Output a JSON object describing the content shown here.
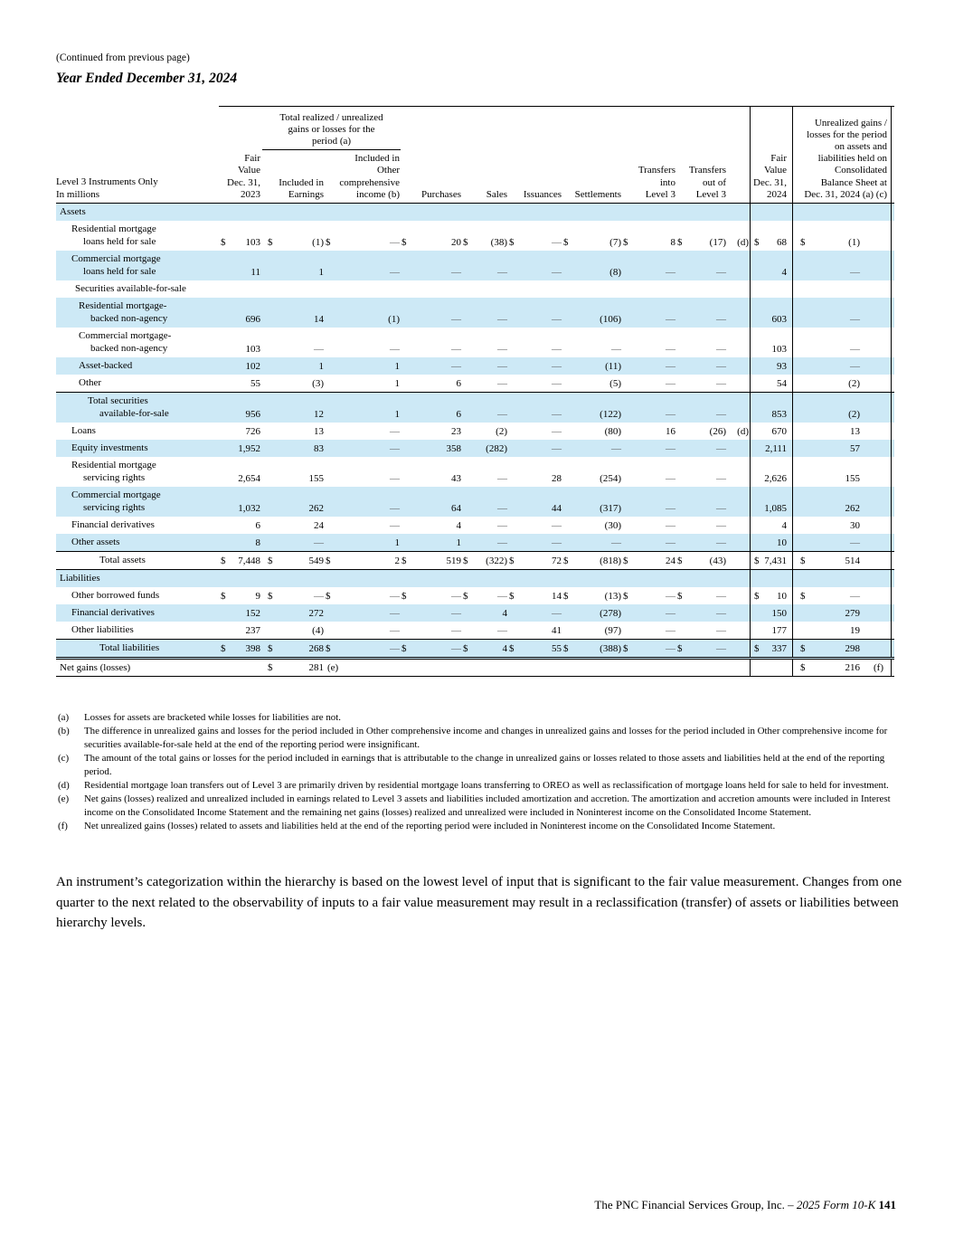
{
  "page": {
    "continued_note": "(Continued from previous page)",
    "title": "Year Ended December 31, 2024",
    "paragraph": "An instrument’s categorization within the hierarchy is based on the lowest level of input that is significant to the fair value measurement. Changes from one quarter to the next related to the observability of inputs to a fair value measurement may result in a reclassification (transfer) of assets or liabilities between hierarchy levels.",
    "footer": {
      "company": "The PNC Financial Services Group, Inc. – ",
      "form": "2025 Form 10-K",
      "page_number": "141"
    }
  },
  "table": {
    "row_header": "Level 3 Instruments Only\nIn millions",
    "group_header": "Total realized / unrealized\ngains or losses for the\nperiod (a)",
    "columns": [
      "Fair\nValue\nDec. 31,\n2023",
      "Included in\nEarnings",
      "Included in\nOther\ncomprehensive\nincome (b)",
      "Purchases",
      "Sales",
      "Issuances",
      "Settlements",
      "Transfers\ninto\nLevel 3",
      "Transfers\nout of\nLevel 3",
      "Fair\nValue\nDec. 31,\n2024",
      "Unrealized gains /\nlosses for the period\non assets and\nliabilities held on\nConsolidated\nBalance Sheet at\nDec. 31, 2024 (a) (c)"
    ],
    "rows": [
      {
        "label": "Assets",
        "ind": "sec",
        "shade": true,
        "cells": []
      },
      {
        "label": "Residential mortgage\nloans held for sale",
        "ind": "l1",
        "cells": [
          {
            "c": true,
            "v": "103"
          },
          {
            "c": true,
            "v": "(1)"
          },
          {
            "c": true,
            "v": "—"
          },
          {
            "c": true,
            "v": "20"
          },
          {
            "c": true,
            "v": "(38)"
          },
          {
            "c": true,
            "v": "—"
          },
          {
            "c": true,
            "v": "(7)"
          },
          {
            "c": true,
            "v": "8"
          },
          {
            "c": true,
            "v": "(17)",
            "n": "(d)"
          },
          {
            "c": true,
            "v": "68"
          },
          {
            "c": true,
            "v": "(1)"
          }
        ]
      },
      {
        "label": "Commercial mortgage\nloans held for sale",
        "ind": "l1",
        "shade": true,
        "cells": [
          {
            "v": "11"
          },
          {
            "v": "1"
          },
          {
            "v": "—"
          },
          {
            "v": "—"
          },
          {
            "v": "—"
          },
          {
            "v": "—"
          },
          {
            "v": "(8)"
          },
          {
            "v": "—"
          },
          {
            "v": "—"
          },
          {
            "v": "4"
          },
          {
            "v": "—"
          }
        ]
      },
      {
        "label": "Securities available-for-sale",
        "ind": "l1b",
        "cells": []
      },
      {
        "label": "Residential mortgage-\nbacked non-agency",
        "ind": "l2",
        "shade": true,
        "cells": [
          {
            "v": "696"
          },
          {
            "v": "14"
          },
          {
            "v": "(1)"
          },
          {
            "v": "—"
          },
          {
            "v": "—"
          },
          {
            "v": "—"
          },
          {
            "v": "(106)"
          },
          {
            "v": "—"
          },
          {
            "v": "—"
          },
          {
            "v": "603"
          },
          {
            "v": "—"
          }
        ]
      },
      {
        "label": "Commercial mortgage-\nbacked non-agency",
        "ind": "l2",
        "cells": [
          {
            "v": "103"
          },
          {
            "v": "—"
          },
          {
            "v": "—"
          },
          {
            "v": "—"
          },
          {
            "v": "—"
          },
          {
            "v": "—"
          },
          {
            "v": "—"
          },
          {
            "v": "—"
          },
          {
            "v": "—"
          },
          {
            "v": "103"
          },
          {
            "v": "—"
          }
        ]
      },
      {
        "label": "Asset-backed",
        "ind": "l2",
        "shade": true,
        "cells": [
          {
            "v": "102"
          },
          {
            "v": "1"
          },
          {
            "v": "1"
          },
          {
            "v": "—"
          },
          {
            "v": "—"
          },
          {
            "v": "—"
          },
          {
            "v": "(11)"
          },
          {
            "v": "—"
          },
          {
            "v": "—"
          },
          {
            "v": "93"
          },
          {
            "v": "—"
          }
        ]
      },
      {
        "label": "Other",
        "ind": "l2",
        "cells": [
          {
            "v": "55"
          },
          {
            "v": "(3)"
          },
          {
            "v": "1"
          },
          {
            "v": "6"
          },
          {
            "v": "—"
          },
          {
            "v": "—"
          },
          {
            "v": "(5)"
          },
          {
            "v": "—"
          },
          {
            "v": "—"
          },
          {
            "v": "54"
          },
          {
            "v": "(2)"
          }
        ]
      },
      {
        "label": "Total securities\navailable-for-sale",
        "ind": "totalw",
        "shade": true,
        "cls": "bt",
        "cells": [
          {
            "v": "956"
          },
          {
            "v": "12"
          },
          {
            "v": "1"
          },
          {
            "v": "6"
          },
          {
            "v": "—"
          },
          {
            "v": "—"
          },
          {
            "v": "(122)"
          },
          {
            "v": "—"
          },
          {
            "v": "—"
          },
          {
            "v": "853"
          },
          {
            "v": "(2)"
          }
        ]
      },
      {
        "label": "Loans",
        "ind": "l1",
        "cells": [
          {
            "v": "726"
          },
          {
            "v": "13"
          },
          {
            "v": "—"
          },
          {
            "v": "23"
          },
          {
            "v": "(2)"
          },
          {
            "v": "—"
          },
          {
            "v": "(80)"
          },
          {
            "v": "16"
          },
          {
            "v": "(26)",
            "n": "(d)"
          },
          {
            "v": "670"
          },
          {
            "v": "13"
          }
        ]
      },
      {
        "label": "Equity investments",
        "ind": "l1",
        "shade": true,
        "cells": [
          {
            "v": "1,952"
          },
          {
            "v": "83"
          },
          {
            "v": "—"
          },
          {
            "v": "358"
          },
          {
            "v": "(282)"
          },
          {
            "v": "—"
          },
          {
            "v": "—"
          },
          {
            "v": "—"
          },
          {
            "v": "—"
          },
          {
            "v": "2,111"
          },
          {
            "v": "57"
          }
        ]
      },
      {
        "label": "Residential mortgage\nservicing rights",
        "ind": "l1",
        "cells": [
          {
            "v": "2,654"
          },
          {
            "v": "155"
          },
          {
            "v": "—"
          },
          {
            "v": "43"
          },
          {
            "v": "—"
          },
          {
            "v": "28"
          },
          {
            "v": "(254)"
          },
          {
            "v": "—"
          },
          {
            "v": "—"
          },
          {
            "v": "2,626"
          },
          {
            "v": "155"
          }
        ]
      },
      {
        "label": "Commercial mortgage\nservicing rights",
        "ind": "l1",
        "shade": true,
        "cells": [
          {
            "v": "1,032"
          },
          {
            "v": "262"
          },
          {
            "v": "—"
          },
          {
            "v": "64"
          },
          {
            "v": "—"
          },
          {
            "v": "44"
          },
          {
            "v": "(317)"
          },
          {
            "v": "—"
          },
          {
            "v": "—"
          },
          {
            "v": "1,085"
          },
          {
            "v": "262"
          }
        ]
      },
      {
        "label": "Financial derivatives",
        "ind": "l1",
        "cells": [
          {
            "v": "6"
          },
          {
            "v": "24"
          },
          {
            "v": "—"
          },
          {
            "v": "4"
          },
          {
            "v": "—"
          },
          {
            "v": "—"
          },
          {
            "v": "(30)"
          },
          {
            "v": "—"
          },
          {
            "v": "—"
          },
          {
            "v": "4"
          },
          {
            "v": "30"
          }
        ]
      },
      {
        "label": "Other assets",
        "ind": "l1",
        "shade": true,
        "cells": [
          {
            "v": "8"
          },
          {
            "v": "—"
          },
          {
            "v": "1"
          },
          {
            "v": "1"
          },
          {
            "v": "—"
          },
          {
            "v": "—"
          },
          {
            "v": "—"
          },
          {
            "v": "—"
          },
          {
            "v": "—"
          },
          {
            "v": "10"
          },
          {
            "v": "—"
          }
        ]
      },
      {
        "label": "Total assets",
        "ind": "total",
        "cls": "bt bb",
        "cells": [
          {
            "c": true,
            "v": "7,448"
          },
          {
            "c": true,
            "v": "549"
          },
          {
            "c": true,
            "v": "2"
          },
          {
            "c": true,
            "v": "519"
          },
          {
            "c": true,
            "v": "(322)"
          },
          {
            "c": true,
            "v": "72"
          },
          {
            "c": true,
            "v": "(818)"
          },
          {
            "c": true,
            "v": "24"
          },
          {
            "c": true,
            "v": "(43)"
          },
          {
            "c": true,
            "v": "7,431"
          },
          {
            "c": true,
            "v": "514"
          }
        ]
      },
      {
        "label": "Liabilities",
        "ind": "sec",
        "shade": true,
        "cells": []
      },
      {
        "label": "Other borrowed funds",
        "ind": "l1",
        "cells": [
          {
            "c": true,
            "v": "9"
          },
          {
            "c": true,
            "v": "—"
          },
          {
            "c": true,
            "v": "—"
          },
          {
            "c": true,
            "v": "—"
          },
          {
            "c": true,
            "v": "—"
          },
          {
            "c": true,
            "v": "14"
          },
          {
            "c": true,
            "v": "(13)"
          },
          {
            "c": true,
            "v": "—"
          },
          {
            "c": true,
            "v": "—"
          },
          {
            "c": true,
            "v": "10"
          },
          {
            "c": true,
            "v": "—"
          }
        ]
      },
      {
        "label": "Financial derivatives",
        "ind": "l1",
        "shade": true,
        "cells": [
          {
            "v": "152"
          },
          {
            "v": "272"
          },
          {
            "v": "—"
          },
          {
            "v": "—"
          },
          {
            "v": "4"
          },
          {
            "v": "—"
          },
          {
            "v": "(278)"
          },
          {
            "v": "—"
          },
          {
            "v": "—"
          },
          {
            "v": "150"
          },
          {
            "v": "279"
          }
        ]
      },
      {
        "label": "Other liabilities",
        "ind": "l1",
        "cells": [
          {
            "v": "237"
          },
          {
            "v": "(4)"
          },
          {
            "v": "—"
          },
          {
            "v": "—"
          },
          {
            "v": "—"
          },
          {
            "v": "41"
          },
          {
            "v": "(97)"
          },
          {
            "v": "—"
          },
          {
            "v": "—"
          },
          {
            "v": "177"
          },
          {
            "v": "19"
          }
        ]
      },
      {
        "label": "Total liabilities",
        "ind": "total",
        "shade": true,
        "cls": "bt bbd",
        "cells": [
          {
            "c": true,
            "v": "398"
          },
          {
            "c": true,
            "v": "268"
          },
          {
            "c": true,
            "v": "—"
          },
          {
            "c": true,
            "v": "—"
          },
          {
            "c": true,
            "v": "4"
          },
          {
            "c": true,
            "v": "55"
          },
          {
            "c": true,
            "v": "(388)"
          },
          {
            "c": true,
            "v": "—"
          },
          {
            "c": true,
            "v": "—"
          },
          {
            "c": true,
            "v": "337"
          },
          {
            "c": true,
            "v": "298"
          }
        ]
      },
      {
        "label": "Net gains (losses)",
        "ind": "sec",
        "cls": "bb",
        "cells": [
          null,
          {
            "c": true,
            "v": "281",
            "n": "(e)"
          },
          null,
          null,
          null,
          null,
          null,
          null,
          null,
          null,
          {
            "c": true,
            "v": "216",
            "n": "(f)"
          }
        ]
      }
    ]
  },
  "footnotes": [
    {
      "key": "(a)",
      "text": "Losses for assets are bracketed while losses for liabilities are not."
    },
    {
      "key": "(b)",
      "text": "The difference in unrealized gains and losses for the period included in Other comprehensive income and changes in unrealized gains and losses for the period included in Other comprehensive income for securities available-for-sale held at the end of the reporting period were insignificant."
    },
    {
      "key": "(c)",
      "text": "The amount of the total gains or losses for the period included in earnings that is attributable to the change in unrealized gains or losses related to those assets and liabilities held at the end of the reporting period."
    },
    {
      "key": "(d)",
      "text": "Residential mortgage loan transfers out of Level 3 are primarily driven by residential mortgage loans transferring to OREO as well as reclassification of mortgage loans held for sale to held for investment."
    },
    {
      "key": "(e)",
      "text": "Net gains (losses) realized and unrealized included in earnings related to Level 3 assets and liabilities included amortization and accretion. The amortization and accretion amounts were included in Interest income on the Consolidated Income Statement and the remaining net gains (losses) realized and unrealized were included in Noninterest income on the Consolidated Income Statement."
    },
    {
      "key": "(f)",
      "text": "Net unrealized gains (losses) related to assets and liabilities held at the end of the reporting period were included in Noninterest income on the Consolidated Income Statement."
    }
  ]
}
